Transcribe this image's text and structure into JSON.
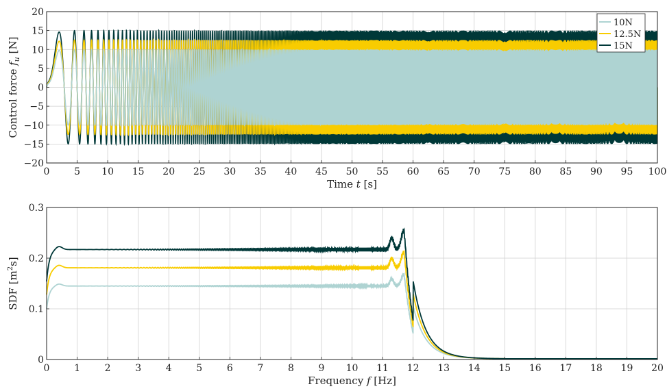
{
  "colors": {
    "s10": "#aed3d2",
    "s125": "#f8cc00",
    "s15": "#003838",
    "grid": "#cfcfcf",
    "axis": "#222222"
  },
  "chart_data": [
    {
      "type": "line",
      "id": "time",
      "xlabel_prefix": "Time ",
      "xlabel_var": "t",
      "xlabel_suffix": " [s]",
      "ylabel_prefix": "Control force ",
      "ylabel_var": "f",
      "ylabel_sub": "u",
      "ylabel_suffix": " [N]",
      "xlim": [
        0,
        100
      ],
      "ylim": [
        -20,
        20
      ],
      "xticks": [
        0,
        5,
        10,
        15,
        20,
        25,
        30,
        35,
        40,
        45,
        50,
        55,
        60,
        65,
        70,
        75,
        80,
        85,
        90,
        95,
        100
      ],
      "yticks": [
        -20,
        -15,
        -10,
        -5,
        0,
        5,
        10,
        15,
        20
      ],
      "xtick_labels": [
        "0",
        "5",
        "10",
        "15",
        "20",
        "25",
        "30",
        "35",
        "40",
        "45",
        "50",
        "55",
        "60",
        "65",
        "70",
        "75",
        "80",
        "85",
        "90",
        "95",
        "100"
      ],
      "ytick_labels": [
        "−20",
        "−15",
        "−10",
        "−5",
        "0",
        "5",
        "10",
        "15",
        "20"
      ],
      "grid": true,
      "legend_position": "top-right",
      "signal": "linear chirp, 0–12 Hz over 0–100 s, amplitude = series force",
      "series": [
        {
          "name": "10N",
          "amplitude": 10
        },
        {
          "name": "12.5N",
          "amplitude": 12.5
        },
        {
          "name": "15N",
          "amplitude": 15
        }
      ]
    },
    {
      "type": "line",
      "id": "sdf",
      "xlabel_prefix": "Frequency ",
      "xlabel_var": "f",
      "xlabel_suffix": " [Hz]",
      "ylabel_prefix": "SDF [m",
      "ylabel_sup": "2",
      "ylabel_suffix": "s]",
      "xlim": [
        0,
        20
      ],
      "ylim": [
        0,
        0.3
      ],
      "xticks": [
        0,
        1,
        2,
        3,
        4,
        5,
        6,
        7,
        8,
        9,
        10,
        11,
        12,
        13,
        14,
        15,
        16,
        17,
        18,
        19,
        20
      ],
      "yticks": [
        0,
        0.1,
        0.2,
        0.3
      ],
      "xtick_labels": [
        "0",
        "1",
        "2",
        "3",
        "4",
        "5",
        "6",
        "7",
        "8",
        "9",
        "10",
        "11",
        "12",
        "13",
        "14",
        "15",
        "16",
        "17",
        "18",
        "19",
        "20"
      ],
      "ytick_labels": [
        "0",
        "0.1",
        "0.2",
        "0.3"
      ],
      "grid": true,
      "series": [
        {
          "name": "10N",
          "start": 0.1,
          "plateau": 0.145,
          "peak": 0.168,
          "peak_f": 11.7,
          "cutoff_f": 12
        },
        {
          "name": "12.5N",
          "start": 0.128,
          "plateau": 0.181,
          "peak": 0.212,
          "peak_f": 11.7,
          "cutoff_f": 12
        },
        {
          "name": "15N",
          "start": 0.154,
          "plateau": 0.217,
          "peak": 0.255,
          "peak_f": 11.7,
          "cutoff_f": 12
        }
      ]
    }
  ]
}
